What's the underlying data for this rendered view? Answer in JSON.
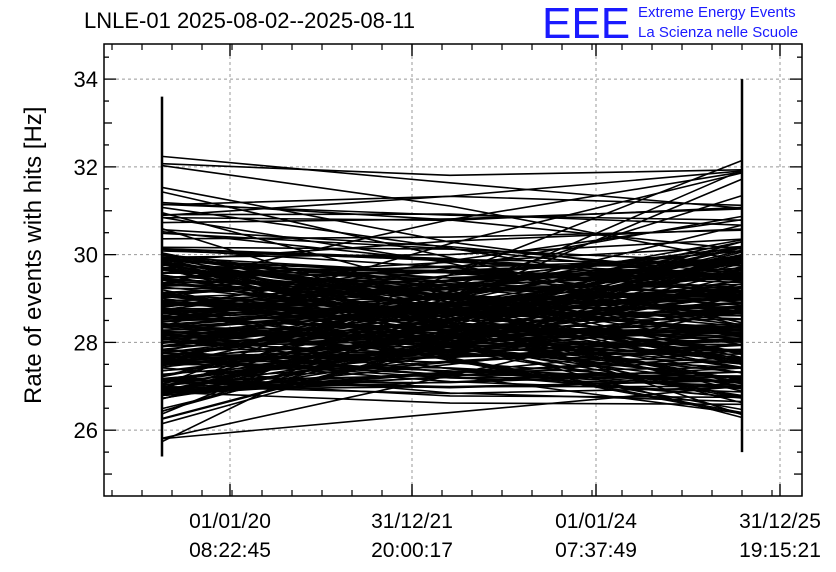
{
  "header": {
    "title": "LNLE-01 2025-08-02--2025-08-11",
    "logo_text": "EEE",
    "logo_line1": "Extreme Energy Events",
    "logo_line2": "La Scienza nelle Scuole",
    "brand_color": "#1a1aff"
  },
  "chart_data": {
    "type": "line",
    "title": "LNLE-01 2025-08-02--2025-08-11",
    "ylabel": "Rate of events with hits [Hz]",
    "xlabel": "",
    "ylim": [
      24.5,
      34.8
    ],
    "y_ticks": [
      26,
      28,
      30,
      32,
      34
    ],
    "x_ticks": [
      {
        "date": "01/01/20",
        "time": "08:22:45"
      },
      {
        "date": "31/12/21",
        "time": "20:00:17"
      },
      {
        "date": "01/01/24",
        "time": "07:37:49"
      },
      {
        "date": "31/12/25",
        "time": "19:15:21"
      }
    ],
    "grid": true,
    "line_color": "#000000",
    "value_band": {
      "y_min": 25.4,
      "y_max": 34.0,
      "dense_min": 26.7,
      "dense_max": 30.2
    }
  }
}
